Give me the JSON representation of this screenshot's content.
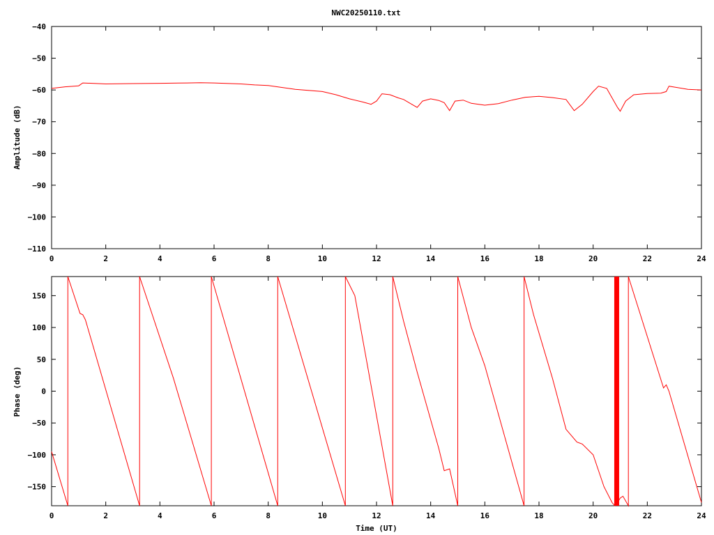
{
  "title": "NWC20250110.txt",
  "colors": {
    "series": "#ff0000",
    "axis": "#000000",
    "background": "#ffffff"
  },
  "chart_data": [
    {
      "type": "line",
      "name": "amplitude",
      "ylabel": "Amplitude (dB)",
      "xlabel": "",
      "xlim": [
        0,
        24
      ],
      "ylim": [
        -110,
        -40
      ],
      "x_ticks": [
        0,
        2,
        4,
        6,
        8,
        10,
        12,
        14,
        16,
        18,
        20,
        22,
        24
      ],
      "y_ticks": [
        -110,
        -100,
        -90,
        -80,
        -70,
        -60,
        -50,
        -40
      ],
      "grid": false,
      "series": [
        {
          "x": [
            0.0,
            0.5,
            1.0,
            1.15,
            1.5,
            2.0,
            3.0,
            4.0,
            5.0,
            5.5,
            6.0,
            7.0,
            7.5,
            8.0,
            8.5,
            9.0,
            10.0,
            10.5,
            11.0,
            11.5,
            11.8,
            12.0,
            12.2,
            12.5,
            12.8,
            13.0,
            13.3,
            13.5,
            13.7,
            14.0,
            14.3,
            14.5,
            14.7,
            14.9,
            15.2,
            15.5,
            16.0,
            16.5,
            17.0,
            17.5,
            18.0,
            18.5,
            19.0,
            19.3,
            19.6,
            20.0,
            20.2,
            20.5,
            20.7,
            20.9,
            21.0,
            21.2,
            21.5,
            22.0,
            22.5,
            22.7,
            22.8,
            23.0,
            23.5,
            24.0
          ],
          "y": [
            -59.5,
            -59.0,
            -58.7,
            -57.8,
            -57.9,
            -58.1,
            -58.0,
            -57.9,
            -57.8,
            -57.7,
            -57.8,
            -58.1,
            -58.4,
            -58.6,
            -59.2,
            -59.8,
            -60.5,
            -61.5,
            -62.8,
            -63.8,
            -64.5,
            -63.5,
            -61.2,
            -61.5,
            -62.5,
            -63.0,
            -64.5,
            -65.5,
            -63.5,
            -62.8,
            -63.3,
            -64.0,
            -66.5,
            -63.5,
            -63.2,
            -64.2,
            -64.8,
            -64.3,
            -63.2,
            -62.3,
            -62.0,
            -62.4,
            -63.0,
            -66.5,
            -64.5,
            -60.5,
            -58.8,
            -59.5,
            -62.5,
            -65.5,
            -66.7,
            -63.5,
            -61.5,
            -61.1,
            -61.0,
            -60.5,
            -58.8,
            -59.1,
            -59.8,
            -60.0
          ]
        }
      ]
    },
    {
      "type": "line",
      "name": "phase",
      "ylabel": "Phase (deg)",
      "xlabel": "Time (UT)",
      "xlim": [
        0,
        24
      ],
      "ylim": [
        -180,
        180
      ],
      "x_ticks": [
        0,
        2,
        4,
        6,
        8,
        10,
        12,
        14,
        16,
        18,
        20,
        22,
        24
      ],
      "y_ticks": [
        -150,
        -100,
        -50,
        0,
        50,
        100,
        150
      ],
      "grid": false,
      "series": [
        {
          "x": [
            0.0,
            0.6,
            0.6,
            1.05,
            1.15,
            1.25,
            3.25,
            3.25,
            4.5,
            5.9,
            5.9,
            8.35,
            8.35,
            10.85,
            10.85,
            11.2,
            12.6,
            12.6,
            13.0,
            13.5,
            13.9,
            14.3,
            14.5,
            14.7,
            15.0,
            15.0,
            15.5,
            16.0,
            17.45,
            17.45,
            17.8,
            18.5,
            19.0,
            19.4,
            19.6,
            20.0,
            20.4,
            20.7,
            20.8,
            20.8,
            20.9,
            21.0,
            21.1,
            21.3,
            21.3,
            22.6,
            22.7,
            22.8,
            24.0
          ],
          "y": [
            -95,
            -180,
            180,
            122,
            120,
            112,
            -180,
            180,
            20,
            -180,
            180,
            -180,
            180,
            -180,
            180,
            150,
            -180,
            180,
            110,
            30,
            -30,
            -90,
            -125,
            -122,
            -180,
            180,
            100,
            40,
            -180,
            180,
            120,
            20,
            -60,
            -80,
            -83,
            -100,
            -150,
            -175,
            -180,
            -180,
            -175,
            -168,
            -165,
            -180,
            180,
            5,
            10,
            0,
            -175
          ]
        }
      ]
    }
  ]
}
